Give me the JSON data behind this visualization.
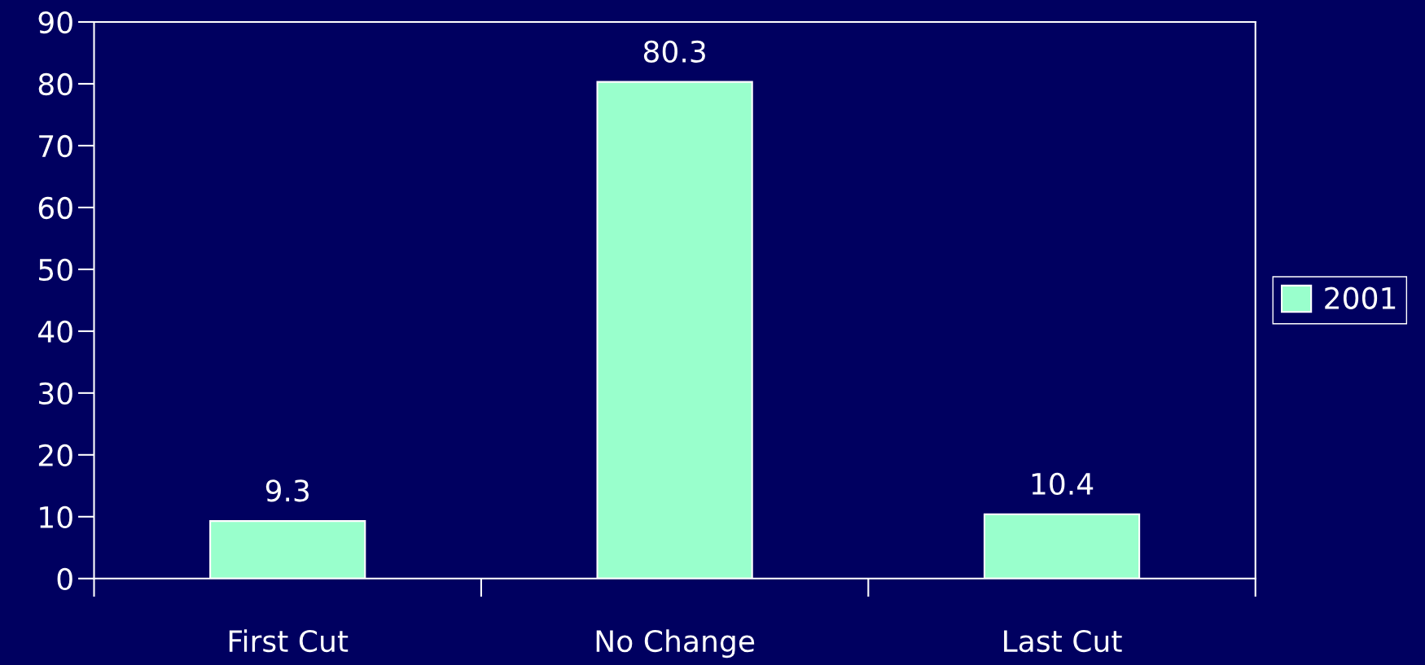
{
  "chart_data": {
    "type": "bar",
    "categories": [
      "First Cut",
      "No Change",
      "Last Cut"
    ],
    "series": [
      {
        "name": "2001",
        "color": "#99ffcc",
        "values": [
          9.3,
          80.3,
          10.4
        ]
      }
    ],
    "ylim": [
      0,
      90
    ],
    "yticks": [
      0,
      10,
      20,
      30,
      40,
      50,
      60,
      70,
      80,
      90
    ],
    "data_labels": true,
    "grid": false,
    "legend": "right"
  }
}
